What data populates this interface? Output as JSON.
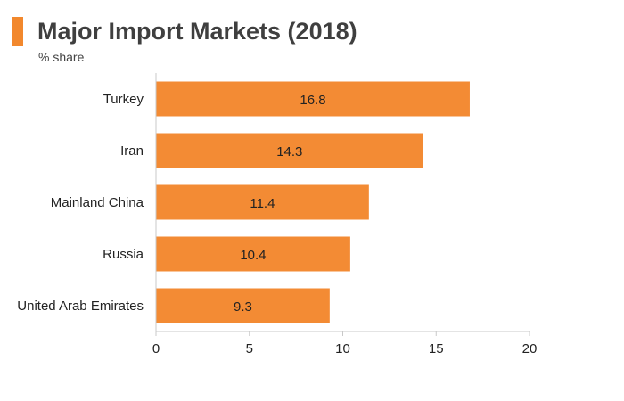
{
  "title": "Major Import Markets (2018)",
  "subtitle": "% share",
  "colors": {
    "accent": "#f2882d",
    "bar": "#f38b34",
    "axis": "#c8c8c8",
    "text": "#222222"
  },
  "chart_data": {
    "type": "bar",
    "orientation": "horizontal",
    "title": "Major Import Markets (2018)",
    "subtitle": "% share",
    "categories": [
      "Turkey",
      "Iran",
      "Mainland China",
      "Russia",
      "United Arab Emirates"
    ],
    "values": [
      16.8,
      14.3,
      11.4,
      10.4,
      9.3
    ],
    "data_labels": [
      "16.8",
      "14.3",
      "11.4",
      "10.4",
      "9.3"
    ],
    "xlim": [
      0,
      20
    ],
    "xticks": [
      0,
      5,
      10,
      15,
      20
    ],
    "xtick_labels": [
      "0",
      "5",
      "10",
      "15",
      "20"
    ],
    "grid": false,
    "legend": "none"
  }
}
